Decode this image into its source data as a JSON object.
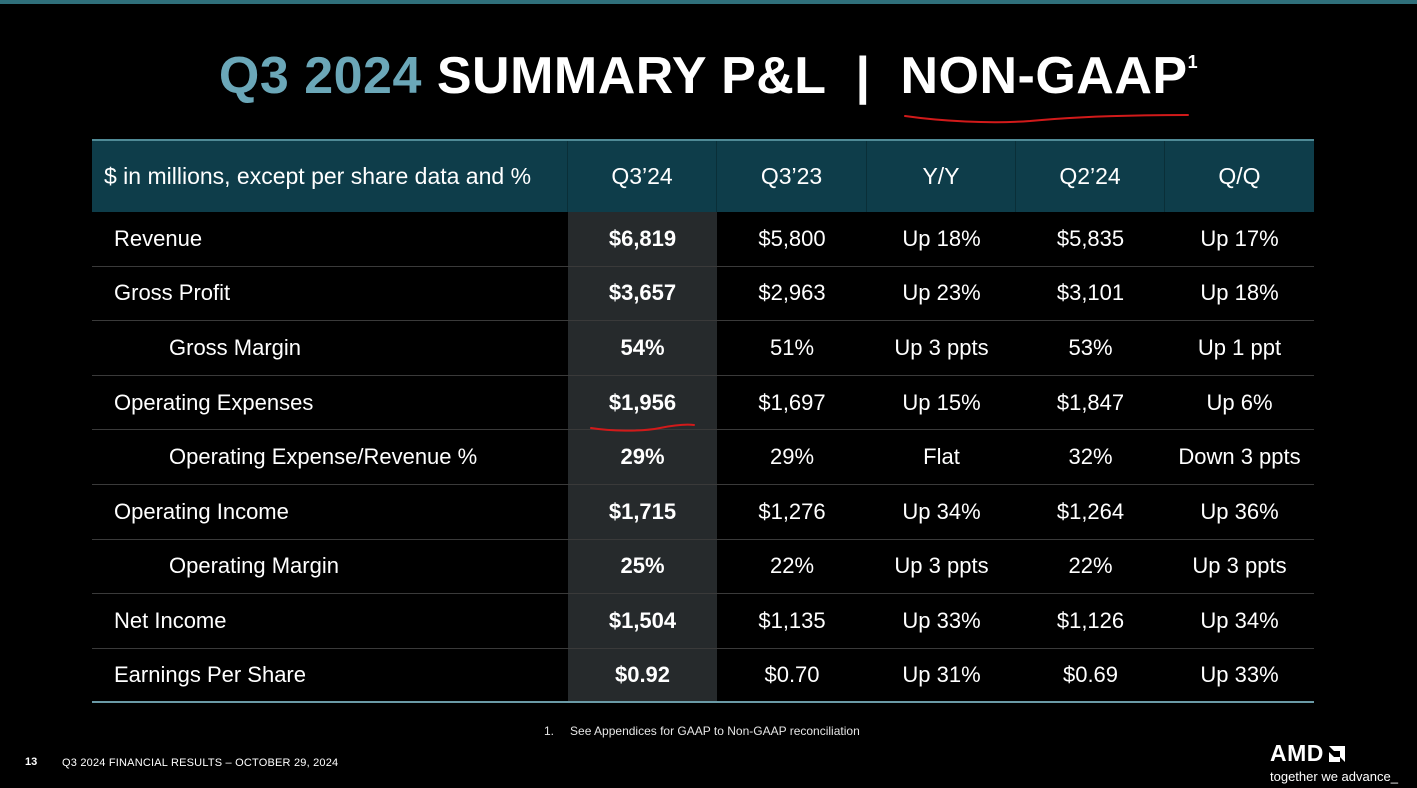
{
  "title": {
    "accent": "Q3 2024",
    "main": " SUMMARY P&L  |  ",
    "emphasis": "NON-GAAP",
    "superscript": "1"
  },
  "table": {
    "headers": [
      "$ in millions, except per share data and %",
      "Q3’24",
      "Q3’23",
      "Y/Y",
      "Q2’24",
      "Q/Q"
    ],
    "rows": [
      {
        "label": "Revenue",
        "values": [
          "$6,819",
          "$5,800",
          "Up 18%",
          "$5,835",
          "Up 17%"
        ]
      },
      {
        "label": "Gross Profit",
        "values": [
          "$3,657",
          "$2,963",
          "Up 23%",
          "$3,101",
          "Up 18%"
        ]
      },
      {
        "label": "Gross Margin",
        "values": [
          "54%",
          "51%",
          "Up 3 ppts",
          "53%",
          "Up 1 ppt"
        ]
      },
      {
        "label": "Operating Expenses",
        "values": [
          "$1,956",
          "$1,697",
          "Up 15%",
          "$1,847",
          "Up 6%"
        ]
      },
      {
        "label": "Operating Expense/Revenue %",
        "values": [
          "29%",
          "29%",
          "Flat",
          "32%",
          "Down 3 ppts"
        ]
      },
      {
        "label": "Operating Income",
        "values": [
          "$1,715",
          "$1,276",
          "Up 34%",
          "$1,264",
          "Up 36%"
        ]
      },
      {
        "label": "Operating Margin",
        "values": [
          "25%",
          "22%",
          "Up 3 ppts",
          "22%",
          "Up 3 ppts"
        ]
      },
      {
        "label": "Net Income",
        "values": [
          "$1,504",
          "$1,135",
          "Up 33%",
          "$1,126",
          "Up 34%"
        ]
      },
      {
        "label": "Earnings Per Share",
        "values": [
          "$0.92",
          "$0.70",
          "Up 31%",
          "$0.69",
          "Up 33%"
        ]
      }
    ]
  },
  "footnote": {
    "number": "1.",
    "text": "See Appendices for GAAP to Non-GAAP reconciliation"
  },
  "footer": {
    "page": "13",
    "text": "Q3 2024 FINANCIAL RESULTS – OCTOBER 29, 2024"
  },
  "logo": {
    "brand": "AMD",
    "tagline": "together we advance_"
  },
  "colors": {
    "background": "#000000",
    "accent": "#6ba7b8",
    "header_fill": "#0e3d4a",
    "highlight_col": "#262a2c",
    "annotation": "#d11a1a"
  }
}
